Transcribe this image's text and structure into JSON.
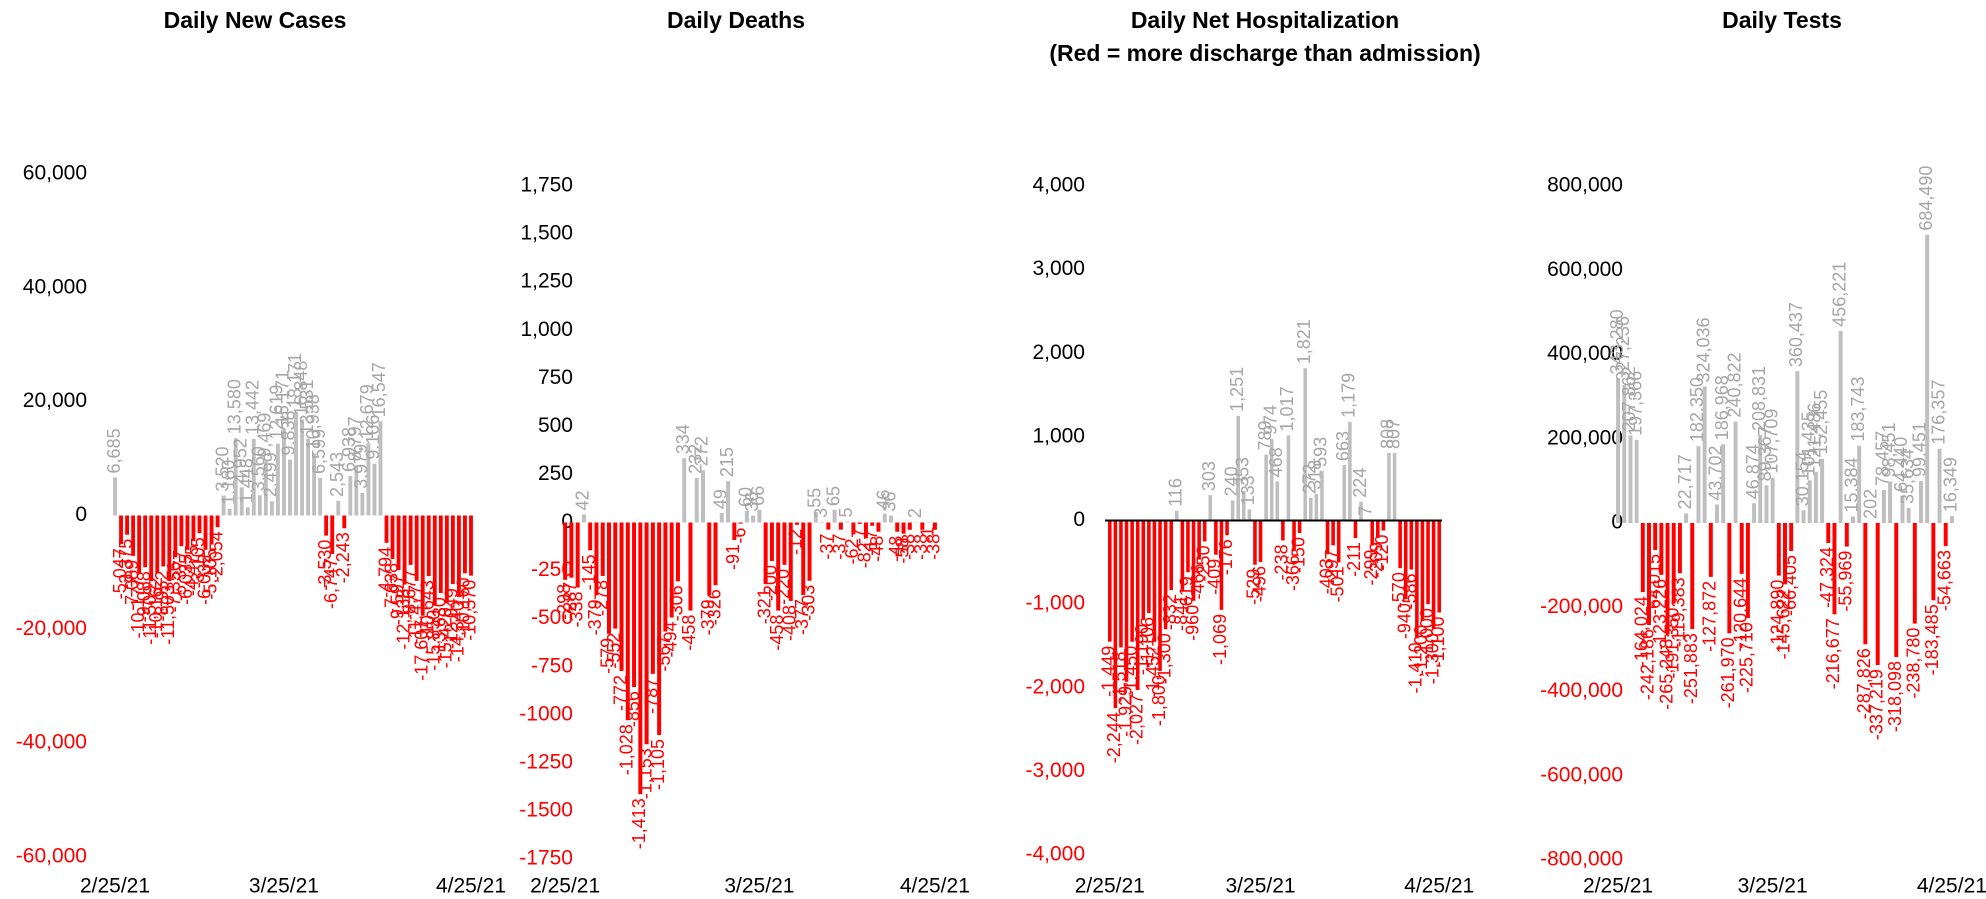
{
  "chart_data": [
    {
      "type": "bar",
      "title": "Daily New Cases",
      "categories": [
        "2/25/21",
        null,
        null,
        null,
        null,
        null,
        null,
        null,
        null,
        null,
        null,
        null,
        null,
        null,
        null,
        null,
        null,
        null,
        null,
        null,
        null,
        null,
        null,
        null,
        null,
        null,
        null,
        null,
        "3/25/21",
        null,
        null,
        null,
        null,
        null,
        null,
        null,
        null,
        null,
        null,
        null,
        null,
        null,
        null,
        null,
        null,
        null,
        null,
        null,
        null,
        null,
        null,
        null,
        null,
        null,
        null,
        null,
        null,
        null,
        null,
        "4/25/21"
      ],
      "values": [
        6685,
        -5047,
        -3375,
        -7089,
        -10177,
        -9088,
        -11509,
        -10162,
        -8952,
        -11503,
        -7356,
        -5377,
        -6035,
        -4475,
        -3105,
        -6032,
        -5105,
        -2054,
        3520,
        1180,
        13580,
        4952,
        1448,
        13442,
        3560,
        9469,
        2499,
        12619,
        15171,
        9838,
        18171,
        16848,
        13531,
        10938,
        6599,
        -3530,
        -6747,
        2543,
        -2243,
        6938,
        8797,
        3979,
        12679,
        9106,
        16547,
        -4794,
        -7638,
        -9597,
        -12138,
        -8677,
        -11477,
        -17607,
        -10643,
        -15850,
        -13630,
        -15420,
        -12049,
        -14340,
        -10160,
        -10570
      ],
      "value_labels": [
        "6,685",
        "-5,047",
        "-3,375",
        "-7,089",
        "-10,177",
        "-9,088",
        "-11,509",
        "-10,162",
        "-8,952",
        "-11,503",
        "-7,356",
        "-5,377",
        "-6,035",
        "-4,475",
        "-3,105",
        "-6,032",
        "-5,105",
        "-2,054",
        "3,520",
        "1,180",
        "13,580",
        "4,952",
        "1,448",
        "13,442",
        "3,560",
        "9,469",
        "2,499",
        "12,619",
        "15,171",
        "9,838",
        "18,171",
        "16,848",
        "13,531",
        "10,938",
        "6,599",
        "-3,530",
        "-6,747",
        "2,543",
        "-2,243",
        "6,938",
        "8,797",
        "3,979",
        "12,679",
        "9,106",
        "16,547",
        "-4,794",
        "-7,638",
        "-9,597",
        "-12,138",
        "-8,677",
        "-11,477",
        "-17,607",
        "-10,643",
        "-15,850",
        "-13,630",
        "-15,420",
        "-12,049",
        "-14,340",
        "-10,160",
        "-10,570"
      ],
      "ylim": [
        -60000,
        60000
      ],
      "yticks": [
        {
          "value": -60000,
          "label": "-60,000"
        },
        {
          "value": -40000,
          "label": "-40,000"
        },
        {
          "value": -20000,
          "label": "-20,000"
        },
        0,
        {
          "value": 20000,
          "label": "20,000"
        },
        {
          "value": 40000,
          "label": "40,000"
        },
        {
          "value": 60000,
          "label": "60,000"
        }
      ],
      "pos_color": "#bfbfbf",
      "neg_color": "#ff0000",
      "zero_line": false
    },
    {
      "type": "bar",
      "title": "Daily Deaths",
      "categories": [
        "2/25/21",
        null,
        null,
        null,
        null,
        null,
        null,
        null,
        null,
        null,
        null,
        null,
        null,
        null,
        null,
        null,
        null,
        null,
        null,
        null,
        null,
        null,
        null,
        null,
        null,
        null,
        null,
        null,
        null,
        null,
        null,
        "3/25/21",
        null,
        null,
        null,
        null,
        null,
        null,
        null,
        null,
        null,
        null,
        null,
        null,
        null,
        null,
        null,
        null,
        null,
        null,
        null,
        null,
        null,
        null,
        null,
        null,
        null,
        null,
        null,
        "4/25/21"
      ],
      "values": [
        -298,
        -287,
        -338,
        42,
        -145,
        -379,
        -278,
        -579,
        -552,
        -772,
        -1028,
        -856,
        -1413,
        -1153,
        -787,
        -1105,
        -567,
        -494,
        -306,
        334,
        -458,
        232,
        272,
        -379,
        -326,
        49,
        215,
        -91,
        -6,
        60,
        36,
        66,
        -321,
        -200,
        -458,
        -220,
        -408,
        -12,
        -377,
        -303,
        55,
        3,
        -37,
        65,
        -37,
        5,
        -62,
        -7,
        -82,
        -17,
        -48,
        46,
        36,
        -48,
        -58,
        -38,
        2,
        -38,
        -1,
        -38
      ],
      "value_labels": [
        "-298",
        "-287",
        "-338",
        "42",
        "-145",
        "-379",
        "-278",
        "-579",
        "-552",
        "-772",
        "-1,028",
        "-856",
        "-1,413",
        "-1,153",
        "-787",
        "-1,105",
        "-567",
        "-494",
        "-306",
        "334",
        "-458",
        "232",
        "272",
        "-379",
        "-326",
        "49",
        "215",
        "-91",
        "-6",
        "60",
        "36",
        "66",
        "-321",
        "-200",
        "-458",
        "-220",
        "-408",
        "-12",
        "-377",
        "-303",
        "55",
        "3",
        "-37",
        "65",
        "-37",
        "5",
        "-62",
        "-7",
        "-82",
        "-17",
        "-48",
        "46",
        "36",
        "-48",
        "-58",
        "-38",
        "2",
        "-38",
        "-1",
        "-38"
      ],
      "ylim": [
        -1750,
        1750
      ],
      "yticks": [
        -1750,
        -1500,
        -1250,
        -1000,
        -750,
        -500,
        -250,
        0,
        250,
        500,
        750,
        {
          "value": 1000,
          "label": "1,000"
        },
        {
          "value": 1250,
          "label": "1,250"
        },
        {
          "value": 1500,
          "label": "1,500"
        },
        {
          "value": 1750,
          "label": "1,750"
        }
      ],
      "pos_color": "#bfbfbf",
      "neg_color": "#ff0000",
      "zero_line": false
    },
    {
      "type": "bar",
      "title": "Daily Net Hospitalization",
      "subtitle": "(Red = more discharge than admission)",
      "categories": [
        "2/25/21",
        null,
        null,
        null,
        null,
        null,
        null,
        null,
        null,
        null,
        null,
        null,
        null,
        null,
        null,
        null,
        null,
        null,
        null,
        null,
        null,
        null,
        null,
        null,
        null,
        null,
        null,
        "3/25/21",
        null,
        null,
        null,
        null,
        null,
        null,
        null,
        null,
        null,
        null,
        null,
        null,
        null,
        null,
        null,
        null,
        null,
        null,
        null,
        null,
        null,
        null,
        null,
        null,
        null,
        null,
        null,
        null,
        null,
        null,
        null,
        "4/25/21"
      ],
      "values": [
        -1449,
        -2244,
        -1518,
        -1929,
        -1450,
        -2027,
        -1190,
        -1106,
        -1452,
        -1800,
        -1300,
        -832,
        116,
        -841,
        -619,
        -960,
        -466,
        -250,
        303,
        -409,
        -1069,
        -176,
        240,
        1251,
        353,
        133,
        -529,
        -496,
        789,
        974,
        468,
        -238,
        1017,
        -366,
        -150,
        1821,
        272,
        318,
        593,
        -403,
        -297,
        -501,
        663,
        1179,
        -211,
        224,
        7,
        -299,
        -209,
        -120,
        808,
        807,
        -570,
        -940,
        -586,
        -1410,
        -1200,
        -1000,
        -1300,
        -1100
      ],
      "value_labels": [
        "-1,449",
        "-2,244",
        "-1,518",
        "-1,929",
        "-1,450",
        "-2,027",
        "-1,190",
        "-1,106",
        "-1,452",
        "-1,800",
        "-1,300",
        "-832",
        "116",
        "-841",
        "-619",
        "-960",
        "-466",
        "-250",
        "303",
        "-409",
        "-1,069",
        "-176",
        "240",
        "1,251",
        "353",
        "133",
        "-529",
        "-496",
        "789",
        "974",
        "468",
        "-238",
        "1,017",
        "-366",
        "-150",
        "1,821",
        "272",
        "318",
        "593",
        "-403",
        "-297",
        "-501",
        "663",
        "1,179",
        "-211",
        "224",
        "7",
        "-299",
        "-209",
        "-120",
        "808",
        "807",
        "-570",
        "-940",
        "-586",
        "-1,410",
        "-1,200",
        "-1,000",
        "-1,300",
        "-1,100"
      ],
      "ylim": [
        -4000,
        4000
      ],
      "yticks": [
        {
          "value": -4000,
          "label": "-4,000"
        },
        {
          "value": -3000,
          "label": "-3,000"
        },
        {
          "value": -2000,
          "label": "-2,000"
        },
        {
          "value": -1000,
          "label": "-1,000"
        },
        0,
        {
          "value": 1000,
          "label": "1,000"
        },
        {
          "value": 2000,
          "label": "2,000"
        },
        {
          "value": 3000,
          "label": "3,000"
        },
        {
          "value": 4000,
          "label": "4,000"
        }
      ],
      "pos_color": "#bfbfbf",
      "neg_color": "#ff0000",
      "zero_line": true
    },
    {
      "type": "bar",
      "title": "Daily Tests",
      "categories": [
        "2/25/21",
        null,
        null,
        null,
        null,
        null,
        null,
        null,
        null,
        null,
        null,
        null,
        null,
        null,
        null,
        null,
        null,
        null,
        null,
        null,
        null,
        null,
        null,
        null,
        null,
        "3/25/21",
        null,
        null,
        null,
        null,
        null,
        null,
        null,
        null,
        null,
        null,
        null,
        null,
        null,
        null,
        null,
        null,
        null,
        null,
        null,
        null,
        null,
        null,
        null,
        null,
        null,
        null,
        null,
        null,
        "4/25/21"
      ],
      "values": [
        343280,
        327236,
        207862,
        197366,
        -164024,
        -242186,
        -64015,
        -123226,
        -265248,
        -191350,
        -119383,
        22717,
        -251883,
        182350,
        324036,
        -127872,
        43702,
        186968,
        -261970,
        240822,
        -120644,
        -225710,
        46874,
        208831,
        89367,
        107709,
        -124890,
        -145622,
        -66405,
        360437,
        30154,
        101435,
        121486,
        152455,
        -47324,
        -216677,
        456221,
        -55969,
        15384,
        183743,
        -287826,
        202,
        -337219,
        78457,
        98451,
        -318098,
        64440,
        35634,
        -238780,
        99451,
        684490,
        -183485,
        176357,
        -54663,
        16349
      ],
      "value_labels": [
        "343,280",
        "327,236",
        "207,862",
        "197,366",
        "-164,024",
        "-242,186",
        "-64,015",
        "-123,226",
        "-265,248",
        "-191,350",
        "-119,383",
        "22,717",
        "-251,883",
        "182,350",
        "324,036",
        "-127,872",
        "43,702",
        "186,968",
        "-261,970",
        "240,822",
        "-120,644",
        "-225,710",
        "46,874",
        "208,831",
        "89,367",
        "107,709",
        "-124,890",
        "-145,622",
        "-66,405",
        "360,437",
        "30,154",
        "101,435",
        "121,486",
        "152,455",
        "-47,324",
        "-216,677",
        "456,221",
        "-55,969",
        "15,384",
        "183,743",
        "-287,826",
        "202",
        "-337,219",
        "78,457",
        "98,451",
        "-318,098",
        "64,440",
        "35,634",
        "-238,780",
        "99,451",
        "684,490",
        "-183,485",
        "176,357",
        "-54,663",
        "16,349"
      ],
      "ylim": [
        -800000,
        800000
      ],
      "yticks": [
        {
          "value": -800000,
          "label": "-800,000"
        },
        {
          "value": -600000,
          "label": "-600,000"
        },
        {
          "value": -400000,
          "label": "-400,000"
        },
        {
          "value": -200000,
          "label": "-200,000"
        },
        0,
        {
          "value": 200000,
          "label": "200,000"
        },
        {
          "value": 400000,
          "label": "400,000"
        },
        {
          "value": 600000,
          "label": "600,000"
        },
        {
          "value": 800000,
          "label": "800,000"
        }
      ],
      "pos_color": "#bfbfbf",
      "neg_color": "#ff0000",
      "zero_line": false
    }
  ]
}
